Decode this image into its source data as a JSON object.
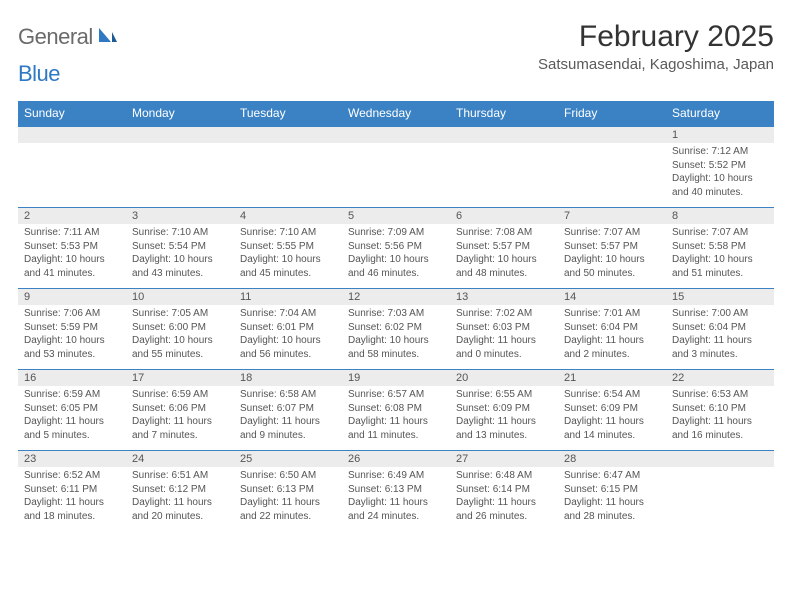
{
  "branding": {
    "general": "General",
    "blue": "Blue"
  },
  "header": {
    "month_title": "February 2025",
    "location": "Satsumasendai, Kagoshima, Japan"
  },
  "colors": {
    "header_bg": "#3b82c4",
    "header_text": "#ffffff",
    "date_bg": "#ececec",
    "border": "#3b82c4",
    "body_text": "#555555",
    "logo_gray": "#6b6b6b",
    "logo_blue": "#2f78c3"
  },
  "day_names": [
    "Sunday",
    "Monday",
    "Tuesday",
    "Wednesday",
    "Thursday",
    "Friday",
    "Saturday"
  ],
  "weeks": [
    {
      "dates": [
        "",
        "",
        "",
        "",
        "",
        "",
        "1"
      ],
      "details": [
        null,
        null,
        null,
        null,
        null,
        null,
        {
          "sunrise": "Sunrise: 7:12 AM",
          "sunset": "Sunset: 5:52 PM",
          "daylight1": "Daylight: 10 hours",
          "daylight2": "and 40 minutes."
        }
      ]
    },
    {
      "dates": [
        "2",
        "3",
        "4",
        "5",
        "6",
        "7",
        "8"
      ],
      "details": [
        {
          "sunrise": "Sunrise: 7:11 AM",
          "sunset": "Sunset: 5:53 PM",
          "daylight1": "Daylight: 10 hours",
          "daylight2": "and 41 minutes."
        },
        {
          "sunrise": "Sunrise: 7:10 AM",
          "sunset": "Sunset: 5:54 PM",
          "daylight1": "Daylight: 10 hours",
          "daylight2": "and 43 minutes."
        },
        {
          "sunrise": "Sunrise: 7:10 AM",
          "sunset": "Sunset: 5:55 PM",
          "daylight1": "Daylight: 10 hours",
          "daylight2": "and 45 minutes."
        },
        {
          "sunrise": "Sunrise: 7:09 AM",
          "sunset": "Sunset: 5:56 PM",
          "daylight1": "Daylight: 10 hours",
          "daylight2": "and 46 minutes."
        },
        {
          "sunrise": "Sunrise: 7:08 AM",
          "sunset": "Sunset: 5:57 PM",
          "daylight1": "Daylight: 10 hours",
          "daylight2": "and 48 minutes."
        },
        {
          "sunrise": "Sunrise: 7:07 AM",
          "sunset": "Sunset: 5:57 PM",
          "daylight1": "Daylight: 10 hours",
          "daylight2": "and 50 minutes."
        },
        {
          "sunrise": "Sunrise: 7:07 AM",
          "sunset": "Sunset: 5:58 PM",
          "daylight1": "Daylight: 10 hours",
          "daylight2": "and 51 minutes."
        }
      ]
    },
    {
      "dates": [
        "9",
        "10",
        "11",
        "12",
        "13",
        "14",
        "15"
      ],
      "details": [
        {
          "sunrise": "Sunrise: 7:06 AM",
          "sunset": "Sunset: 5:59 PM",
          "daylight1": "Daylight: 10 hours",
          "daylight2": "and 53 minutes."
        },
        {
          "sunrise": "Sunrise: 7:05 AM",
          "sunset": "Sunset: 6:00 PM",
          "daylight1": "Daylight: 10 hours",
          "daylight2": "and 55 minutes."
        },
        {
          "sunrise": "Sunrise: 7:04 AM",
          "sunset": "Sunset: 6:01 PM",
          "daylight1": "Daylight: 10 hours",
          "daylight2": "and 56 minutes."
        },
        {
          "sunrise": "Sunrise: 7:03 AM",
          "sunset": "Sunset: 6:02 PM",
          "daylight1": "Daylight: 10 hours",
          "daylight2": "and 58 minutes."
        },
        {
          "sunrise": "Sunrise: 7:02 AM",
          "sunset": "Sunset: 6:03 PM",
          "daylight1": "Daylight: 11 hours",
          "daylight2": "and 0 minutes."
        },
        {
          "sunrise": "Sunrise: 7:01 AM",
          "sunset": "Sunset: 6:04 PM",
          "daylight1": "Daylight: 11 hours",
          "daylight2": "and 2 minutes."
        },
        {
          "sunrise": "Sunrise: 7:00 AM",
          "sunset": "Sunset: 6:04 PM",
          "daylight1": "Daylight: 11 hours",
          "daylight2": "and 3 minutes."
        }
      ]
    },
    {
      "dates": [
        "16",
        "17",
        "18",
        "19",
        "20",
        "21",
        "22"
      ],
      "details": [
        {
          "sunrise": "Sunrise: 6:59 AM",
          "sunset": "Sunset: 6:05 PM",
          "daylight1": "Daylight: 11 hours",
          "daylight2": "and 5 minutes."
        },
        {
          "sunrise": "Sunrise: 6:59 AM",
          "sunset": "Sunset: 6:06 PM",
          "daylight1": "Daylight: 11 hours",
          "daylight2": "and 7 minutes."
        },
        {
          "sunrise": "Sunrise: 6:58 AM",
          "sunset": "Sunset: 6:07 PM",
          "daylight1": "Daylight: 11 hours",
          "daylight2": "and 9 minutes."
        },
        {
          "sunrise": "Sunrise: 6:57 AM",
          "sunset": "Sunset: 6:08 PM",
          "daylight1": "Daylight: 11 hours",
          "daylight2": "and 11 minutes."
        },
        {
          "sunrise": "Sunrise: 6:55 AM",
          "sunset": "Sunset: 6:09 PM",
          "daylight1": "Daylight: 11 hours",
          "daylight2": "and 13 minutes."
        },
        {
          "sunrise": "Sunrise: 6:54 AM",
          "sunset": "Sunset: 6:09 PM",
          "daylight1": "Daylight: 11 hours",
          "daylight2": "and 14 minutes."
        },
        {
          "sunrise": "Sunrise: 6:53 AM",
          "sunset": "Sunset: 6:10 PM",
          "daylight1": "Daylight: 11 hours",
          "daylight2": "and 16 minutes."
        }
      ]
    },
    {
      "dates": [
        "23",
        "24",
        "25",
        "26",
        "27",
        "28",
        ""
      ],
      "details": [
        {
          "sunrise": "Sunrise: 6:52 AM",
          "sunset": "Sunset: 6:11 PM",
          "daylight1": "Daylight: 11 hours",
          "daylight2": "and 18 minutes."
        },
        {
          "sunrise": "Sunrise: 6:51 AM",
          "sunset": "Sunset: 6:12 PM",
          "daylight1": "Daylight: 11 hours",
          "daylight2": "and 20 minutes."
        },
        {
          "sunrise": "Sunrise: 6:50 AM",
          "sunset": "Sunset: 6:13 PM",
          "daylight1": "Daylight: 11 hours",
          "daylight2": "and 22 minutes."
        },
        {
          "sunrise": "Sunrise: 6:49 AM",
          "sunset": "Sunset: 6:13 PM",
          "daylight1": "Daylight: 11 hours",
          "daylight2": "and 24 minutes."
        },
        {
          "sunrise": "Sunrise: 6:48 AM",
          "sunset": "Sunset: 6:14 PM",
          "daylight1": "Daylight: 11 hours",
          "daylight2": "and 26 minutes."
        },
        {
          "sunrise": "Sunrise: 6:47 AM",
          "sunset": "Sunset: 6:15 PM",
          "daylight1": "Daylight: 11 hours",
          "daylight2": "and 28 minutes."
        },
        null
      ]
    }
  ]
}
